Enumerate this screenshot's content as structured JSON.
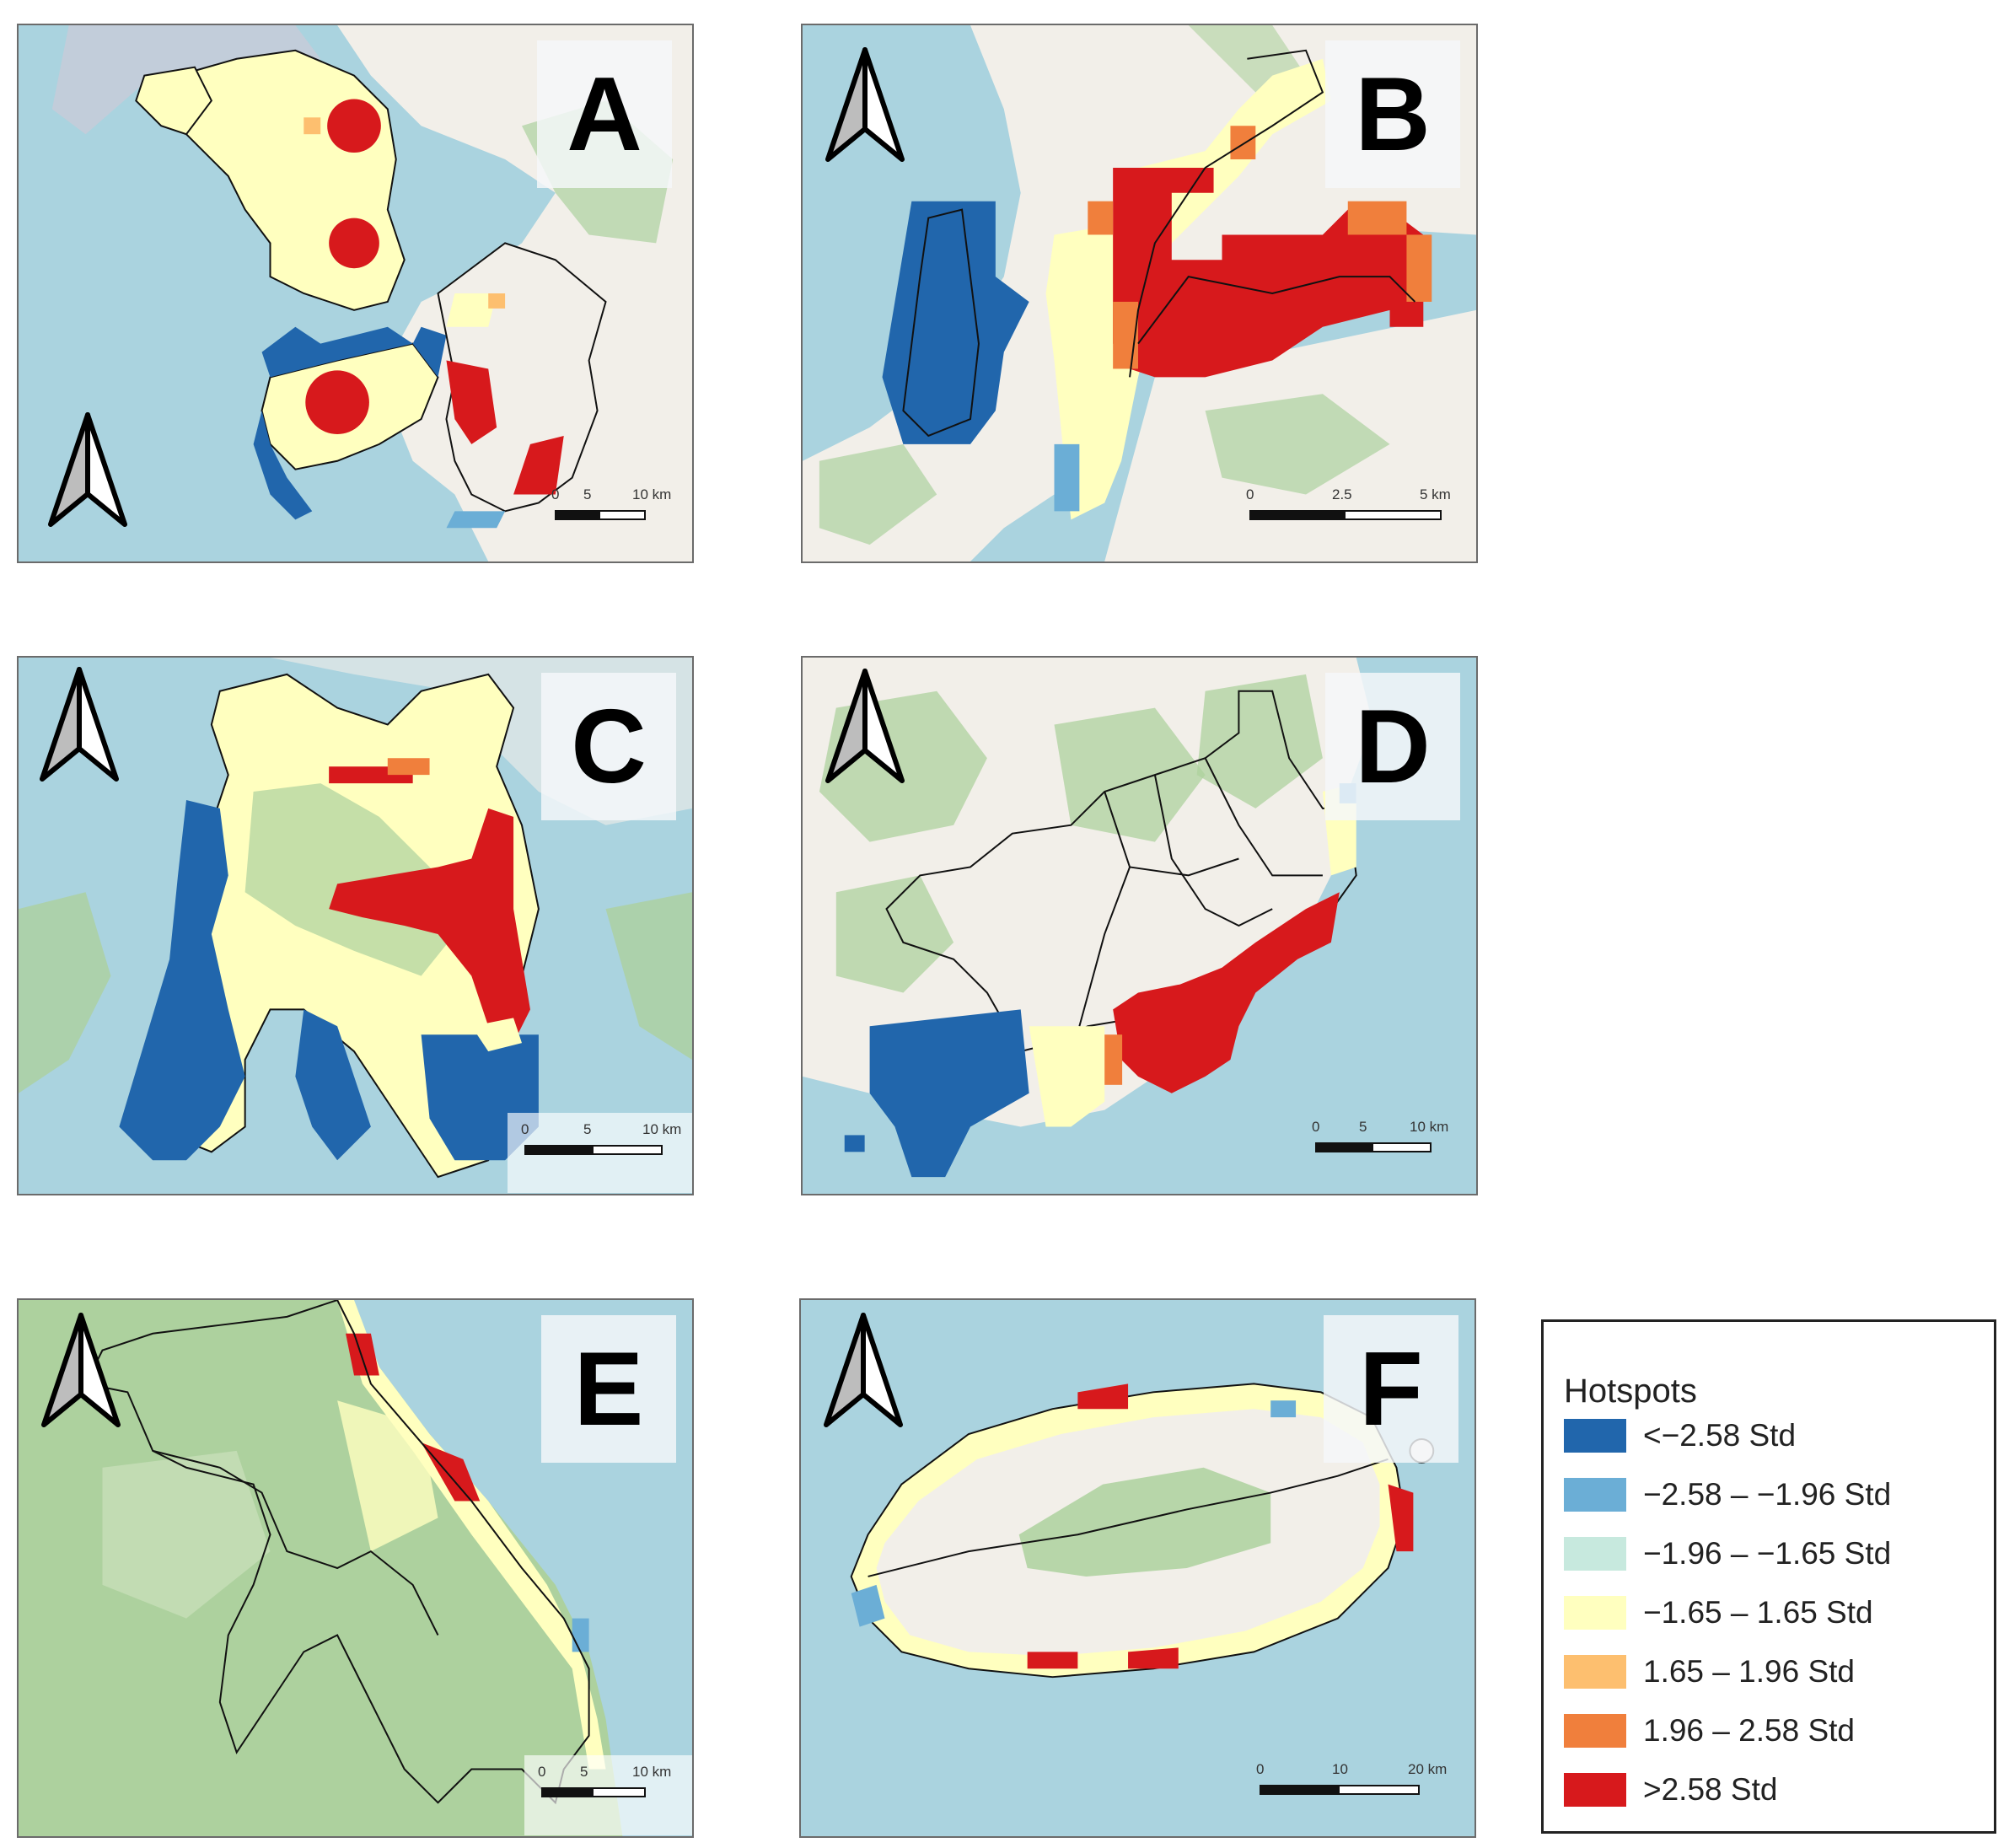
{
  "panels": [
    {
      "id": "A",
      "label": "A",
      "scale": [
        "0",
        "5",
        "10 km"
      ]
    },
    {
      "id": "B",
      "label": "B",
      "scale": [
        "0",
        "2.5",
        "5 km"
      ]
    },
    {
      "id": "C",
      "label": "C",
      "scale": [
        "0",
        "5",
        "10 km"
      ]
    },
    {
      "id": "D",
      "label": "D",
      "scale": [
        "0",
        "5",
        "10 km"
      ]
    },
    {
      "id": "E",
      "label": "E",
      "scale": [
        "0",
        "5",
        "10 km"
      ]
    },
    {
      "id": "F",
      "label": "F",
      "scale": [
        "0",
        "10",
        "20 km"
      ]
    }
  ],
  "legend": {
    "title": "Hotspots",
    "items": [
      {
        "label": "<−2.58 Std",
        "color": "#2166ac"
      },
      {
        "label": "−2.58 – −1.96 Std",
        "color": "#6baed6"
      },
      {
        "label": "−1.96 – −1.65 Std",
        "color": "#c7e9de"
      },
      {
        "label": "−1.65 – 1.65 Std",
        "color": "#ffffbf"
      },
      {
        "label": "1.65 – 1.96 Std",
        "color": "#fdbf6f"
      },
      {
        "label": "1.96 – 2.58 Std",
        "color": "#f07f3c"
      },
      {
        "label": ">2.58 Std",
        "color": "#d7191c"
      }
    ]
  },
  "colors": {
    "sea": "#aad3df",
    "land": "#f2efe9",
    "forest": "#add19e",
    "boundary": "#111111"
  },
  "icons": {
    "north_arrow": "north-arrow-icon"
  }
}
